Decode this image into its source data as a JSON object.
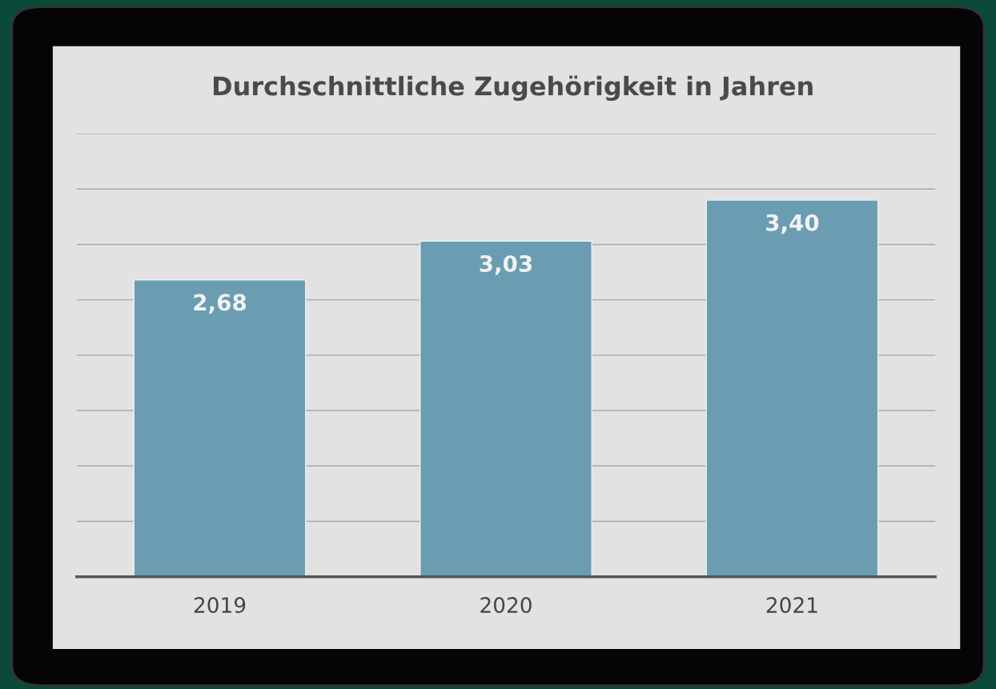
{
  "chart_data": {
    "type": "bar",
    "title": "Durchschnittliche Zugehörigkeit in Jahren",
    "categories": [
      "2019",
      "2020",
      "2021"
    ],
    "values": [
      2.68,
      3.03,
      3.4
    ],
    "value_labels": [
      "2,68",
      "3,03",
      "3,40"
    ],
    "color": "#6a9db2",
    "ylim": [
      0,
      4
    ],
    "yticks": [
      {
        "value": 0,
        "label": null
      },
      {
        "value": 0.5,
        "label": null
      },
      {
        "value": 1,
        "label": null
      },
      {
        "value": 1.5,
        "label": null
      },
      {
        "value": 2,
        "label": null
      },
      {
        "value": 2.5,
        "label": null
      },
      {
        "value": 3,
        "label": null
      },
      {
        "value": 3.5,
        "label": null
      },
      {
        "value": 4,
        "label": null
      }
    ],
    "grid": "y",
    "tick_labels": "x"
  }
}
